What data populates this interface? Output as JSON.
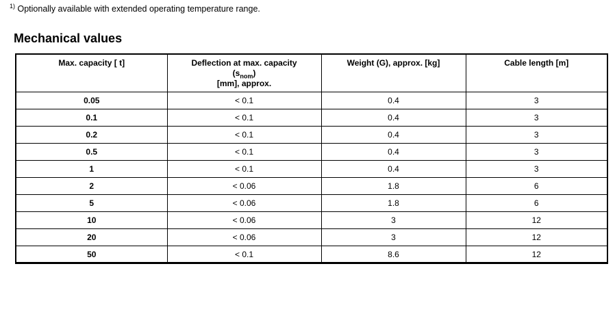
{
  "colors": {
    "text": "#000000",
    "border": "#000000",
    "background": "#ffffff"
  },
  "footnote": {
    "marker": "1)",
    "text": " Optionally available with extended operating temperature range."
  },
  "section": {
    "title": "Mechanical values"
  },
  "table": {
    "headers": {
      "capacity": "Max. capacity [ t]",
      "deflection": {
        "line1": "Deflection at max. capacity",
        "line2_pre": "(s",
        "line2_sub": "nom",
        "line2_post": ")",
        "line3": "[mm], approx."
      },
      "weight": "Weight (G), approx. [kg]",
      "cable": "Cable length [m]"
    },
    "rows": [
      [
        "0.05",
        "< 0.1",
        "0.4",
        "3"
      ],
      [
        "0.1",
        "< 0.1",
        "0.4",
        "3"
      ],
      [
        "0.2",
        "< 0.1",
        "0.4",
        "3"
      ],
      [
        "0.5",
        "< 0.1",
        "0.4",
        "3"
      ],
      [
        "1",
        "< 0.1",
        "0.4",
        "3"
      ],
      [
        "2",
        "< 0.06",
        "1.8",
        "6"
      ],
      [
        "5",
        "< 0.06",
        "1.8",
        "6"
      ],
      [
        "10",
        "< 0.06",
        "3",
        "12"
      ],
      [
        "20",
        "< 0.06",
        "3",
        "12"
      ],
      [
        "50",
        "< 0.1",
        "8.6",
        "12"
      ]
    ]
  }
}
